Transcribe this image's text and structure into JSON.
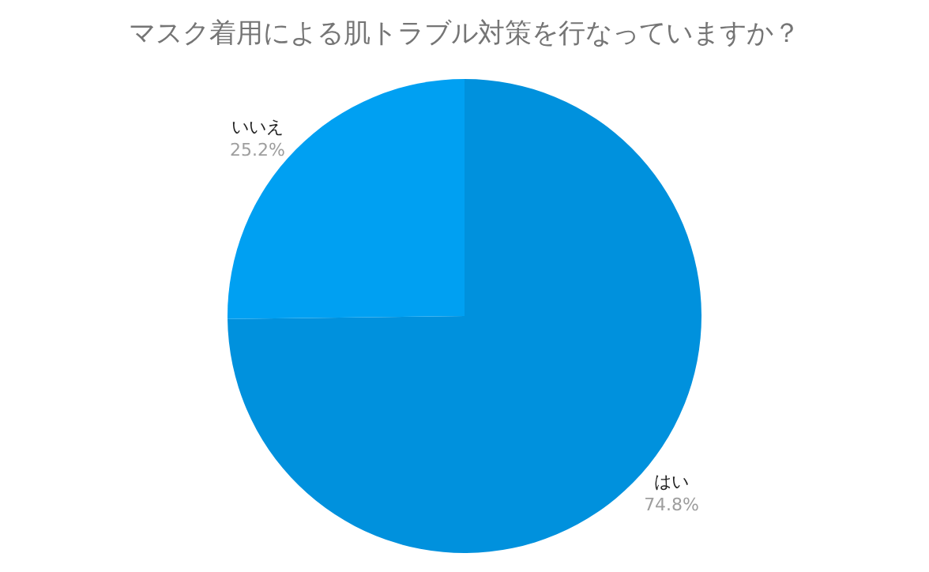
{
  "chart_data": {
    "type": "pie",
    "title": "マスク着用による肌トラブル対策を行なっていますか？",
    "categories": [
      "はい",
      "いいえ"
    ],
    "values": [
      74.8,
      25.2
    ],
    "colors": [
      "#0091dd",
      "#00a0f2"
    ],
    "value_labels": [
      "74.8%",
      "25.2%"
    ],
    "legend": false
  }
}
